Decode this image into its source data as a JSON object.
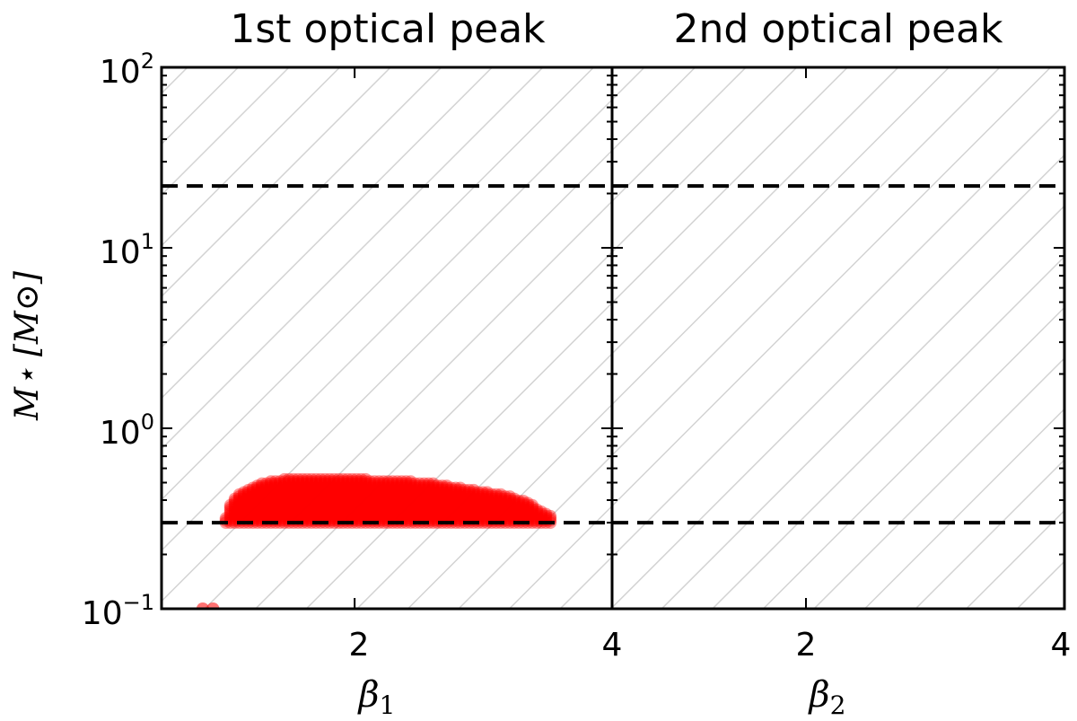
{
  "chart_data": [
    {
      "type": "scatter",
      "title": "1st optical peak",
      "xlabel": "β",
      "xlabel_sub": "1",
      "ylabel": "M⋆ [M⊙]",
      "xscale": "linear",
      "yscale": "log",
      "xlim": [
        0.5,
        4
      ],
      "ylim": [
        0.1,
        100
      ],
      "xticks": [
        {
          "value": 2,
          "label": "2"
        },
        {
          "value": 4,
          "label": "4"
        }
      ],
      "yticks": [
        {
          "value": 100,
          "base": "10",
          "exp": "2"
        },
        {
          "value": 10,
          "base": "10",
          "exp": "1"
        },
        {
          "value": 1,
          "base": "10",
          "exp": "0"
        },
        {
          "value": 0.1,
          "base": "10",
          "exp": "−1"
        }
      ],
      "hlines": [
        22,
        0.3
      ],
      "hatched_background": true,
      "point_color": "#ff0000",
      "point_region": {
        "x_min": 1.0,
        "x_max": 3.55,
        "x_step": 0.035,
        "lower_bound": 0.3,
        "upper_envelope": [
          [
            1.0,
            0.32
          ],
          [
            1.03,
            0.38
          ],
          [
            1.1,
            0.43
          ],
          [
            1.2,
            0.47
          ],
          [
            1.3,
            0.5
          ],
          [
            1.4,
            0.52
          ],
          [
            1.6,
            0.525
          ],
          [
            2.0,
            0.525
          ],
          [
            2.3,
            0.515
          ],
          [
            2.6,
            0.5
          ],
          [
            2.8,
            0.47
          ],
          [
            3.0,
            0.45
          ],
          [
            3.2,
            0.42
          ],
          [
            3.35,
            0.39
          ],
          [
            3.45,
            0.35
          ],
          [
            3.55,
            0.32
          ]
        ]
      },
      "extra_points": [
        [
          0.82,
          0.1
        ],
        [
          0.9,
          0.1
        ]
      ]
    },
    {
      "type": "scatter",
      "title": "2nd optical peak",
      "xlabel": "β",
      "xlabel_sub": "2",
      "xscale": "linear",
      "yscale": "log",
      "xlim": [
        0.5,
        4
      ],
      "ylim": [
        0.1,
        100
      ],
      "xticks": [
        {
          "value": 2,
          "label": "2"
        },
        {
          "value": 4,
          "label": "4"
        }
      ],
      "hlines": [
        22,
        0.3
      ],
      "hatched_background": true,
      "points": []
    }
  ]
}
